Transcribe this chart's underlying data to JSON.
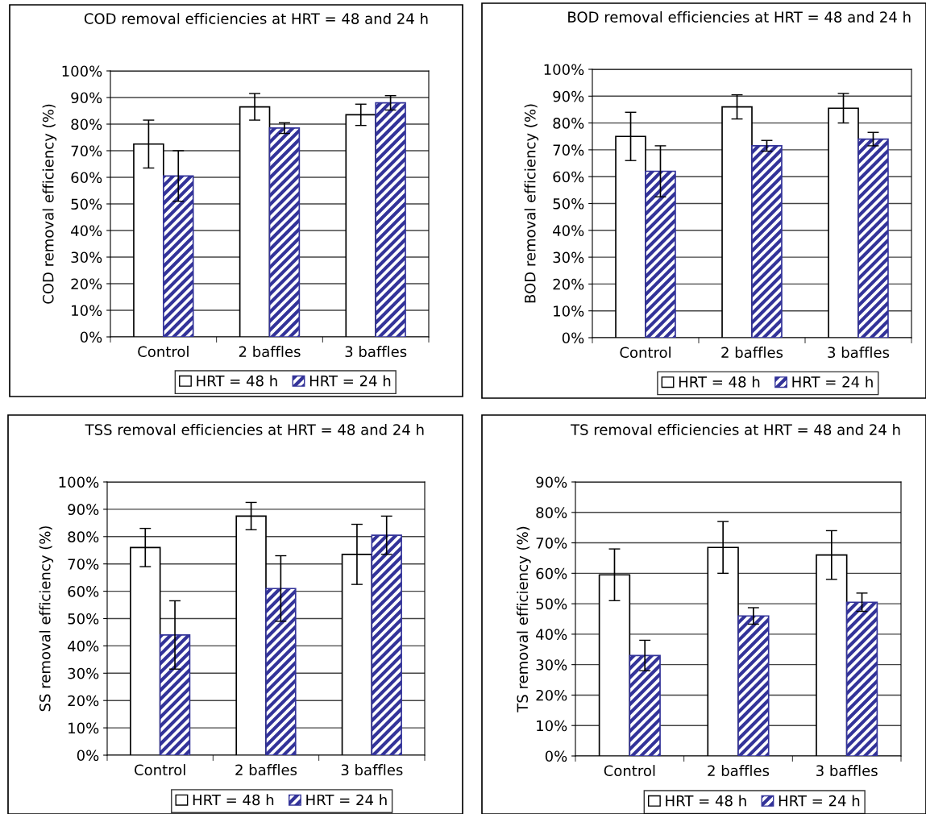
{
  "chart_data": [
    {
      "type": "bar",
      "title": "COD removal efficiencies at HRT = 48 and 24 h",
      "ylabel": "COD removal efficiency (%)",
      "categories": [
        "Control",
        "2 baffles",
        "3 baffles"
      ],
      "series": [
        {
          "name": "HRT = 48 h",
          "color": "#ffffff",
          "values": [
            72.5,
            86.5,
            83.5
          ],
          "errors": [
            9,
            5,
            4
          ]
        },
        {
          "name": "HRT = 24 h",
          "color": "#333399",
          "values": [
            60.5,
            78.5,
            88
          ],
          "errors": [
            9.5,
            2,
            2.7
          ]
        }
      ],
      "ylim": [
        0,
        100
      ],
      "yticks": [
        {
          "value": 0,
          "label": "0%"
        },
        {
          "value": 10,
          "label": "10%"
        },
        {
          "value": 20,
          "label": "20%"
        },
        {
          "value": 30,
          "label": "30%"
        },
        {
          "value": 40,
          "label": "40%"
        },
        {
          "value": 50,
          "label": "50%"
        },
        {
          "value": 60,
          "label": "60%"
        },
        {
          "value": 70,
          "label": "70%"
        },
        {
          "value": 80,
          "label": "80%"
        },
        {
          "value": 90,
          "label": "90%"
        },
        {
          "value": 100,
          "label": "100%"
        }
      ],
      "grid": "y",
      "legend": "bottom"
    },
    {
      "type": "bar",
      "title": "BOD removal efficiencies at HRT = 48 and 24 h",
      "ylabel": "BOD removal efficiency (%)",
      "categories": [
        "Control",
        "2 baffles",
        "3 baffles"
      ],
      "series": [
        {
          "name": "HRT = 48 h",
          "color": "#ffffff",
          "values": [
            75,
            86,
            85.5
          ],
          "errors": [
            9,
            4.5,
            5.5
          ]
        },
        {
          "name": "HRT = 24 h",
          "color": "#333399",
          "values": [
            62,
            71.5,
            74
          ],
          "errors": [
            9.5,
            2,
            2.5
          ]
        }
      ],
      "ylim": [
        0,
        100
      ],
      "yticks": [
        {
          "value": 0,
          "label": "0%"
        },
        {
          "value": 10,
          "label": "10%"
        },
        {
          "value": 20,
          "label": "20%"
        },
        {
          "value": 30,
          "label": "30%"
        },
        {
          "value": 40,
          "label": "40%"
        },
        {
          "value": 50,
          "label": "50%"
        },
        {
          "value": 60,
          "label": "60%"
        },
        {
          "value": 70,
          "label": "70%"
        },
        {
          "value": 80,
          "label": "80%"
        },
        {
          "value": 90,
          "label": "90%"
        },
        {
          "value": 100,
          "label": "100%"
        }
      ],
      "grid": "y",
      "legend": "bottom"
    },
    {
      "type": "bar",
      "title": "TSS removal efficiencies at HRT = 48 and 24 h",
      "ylabel": "SS removal efficiency (%)",
      "categories": [
        "Control",
        "2 baffles",
        "3 baffles"
      ],
      "series": [
        {
          "name": "HRT = 48 h",
          "color": "#ffffff",
          "values": [
            76,
            87.5,
            73.5
          ],
          "errors": [
            7,
            5,
            11
          ]
        },
        {
          "name": "HRT = 24 h",
          "color": "#333399",
          "values": [
            44,
            61,
            80.5
          ],
          "errors": [
            12.5,
            12,
            7
          ]
        }
      ],
      "ylim": [
        0,
        100
      ],
      "yticks": [
        {
          "value": 0,
          "label": "0%"
        },
        {
          "value": 10,
          "label": "10%"
        },
        {
          "value": 20,
          "label": "20%"
        },
        {
          "value": 30,
          "label": "30%"
        },
        {
          "value": 40,
          "label": "40%"
        },
        {
          "value": 50,
          "label": "50%"
        },
        {
          "value": 60,
          "label": "60%"
        },
        {
          "value": 70,
          "label": "70%"
        },
        {
          "value": 80,
          "label": "80%"
        },
        {
          "value": 90,
          "label": "90%"
        },
        {
          "value": 100,
          "label": "100%"
        }
      ],
      "grid": "y",
      "legend": "bottom"
    },
    {
      "type": "bar",
      "title": "TS removal efficiencies at HRT = 48 and 24 h",
      "ylabel": "TS removal efficiency (%)",
      "categories": [
        "Control",
        "2 baffles",
        "3 baffles"
      ],
      "series": [
        {
          "name": "HRT = 48 h",
          "color": "#ffffff",
          "values": [
            59.5,
            68.5,
            66
          ],
          "errors": [
            8.5,
            8.5,
            8
          ]
        },
        {
          "name": "HRT = 24 h",
          "color": "#333399",
          "values": [
            33,
            46,
            50.5
          ],
          "errors": [
            5,
            2.7,
            3
          ]
        }
      ],
      "ylim": [
        0,
        90
      ],
      "yticks": [
        {
          "value": 0,
          "label": "0%"
        },
        {
          "value": 10,
          "label": "10%"
        },
        {
          "value": 20,
          "label": "20%"
        },
        {
          "value": 30,
          "label": "30%"
        },
        {
          "value": 40,
          "label": "40%"
        },
        {
          "value": 50,
          "label": "50%"
        },
        {
          "value": 60,
          "label": "60%"
        },
        {
          "value": 70,
          "label": "70%"
        },
        {
          "value": 80,
          "label": "80%"
        },
        {
          "value": 90,
          "label": "90%"
        }
      ],
      "grid": "y",
      "legend": "bottom"
    }
  ]
}
